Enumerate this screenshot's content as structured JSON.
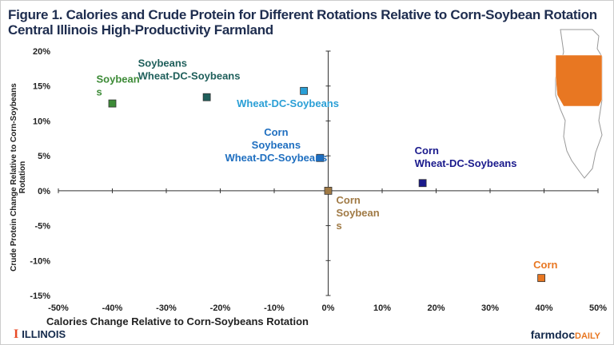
{
  "title_lines": [
    "Figure 1. Calories and Crude Protein for Different Rotations Relative to Corn-Soybean Rotation",
    "Central Illinois High-Productivity Farmland"
  ],
  "chart_data": {
    "type": "scatter",
    "xlabel": "Calories  Change Relative to Corn-Soybeans  Rotation",
    "ylabel": "Crude Protein Change Relative to Corn-Soybeans Rotation",
    "xlim": [
      -50,
      50
    ],
    "ylim": [
      -15,
      20
    ],
    "xticks": [
      "-50%",
      "-40%",
      "-30%",
      "-20%",
      "-10%",
      "0%",
      "10%",
      "20%",
      "30%",
      "40%",
      "50%"
    ],
    "yticks": [
      "20%",
      "15%",
      "10%",
      "5%",
      "0%",
      "-5%",
      "-10%",
      "-15%"
    ],
    "grid": false,
    "points": [
      {
        "label": [
          "Soybean",
          "s"
        ],
        "x": -40,
        "y": 12.5,
        "color": "#3d8b37"
      },
      {
        "label": [
          "Soybeans",
          "Wheat-DC-Soybeans"
        ],
        "x": -22.5,
        "y": 13.4,
        "color": "#1f5f5b"
      },
      {
        "label": [
          "Wheat-DC-Soybeans"
        ],
        "x": -4.5,
        "y": 14.3,
        "color": "#2a9fd6"
      },
      {
        "label": [
          "Corn",
          "Soybeans",
          "Wheat-DC-Soybeans"
        ],
        "x": -1.5,
        "y": 4.7,
        "color": "#1f6fc0"
      },
      {
        "label": [
          "Corn",
          "Wheat-DC-Soybeans"
        ],
        "x": 17.5,
        "y": 1.1,
        "color": "#1a1a8c"
      },
      {
        "label": [
          "Corn",
          "Soybean",
          "s"
        ],
        "x": 0,
        "y": 0,
        "color": "#a07a45"
      },
      {
        "label": [
          "Corn"
        ],
        "x": 39.5,
        "y": -12.5,
        "color": "#e87722"
      }
    ]
  },
  "footer": {
    "illinois": "ILLINOIS",
    "illinois_mark": "I",
    "farmdoc": "farmdoc",
    "daily": "DAILY"
  },
  "map_color": "#e87722"
}
